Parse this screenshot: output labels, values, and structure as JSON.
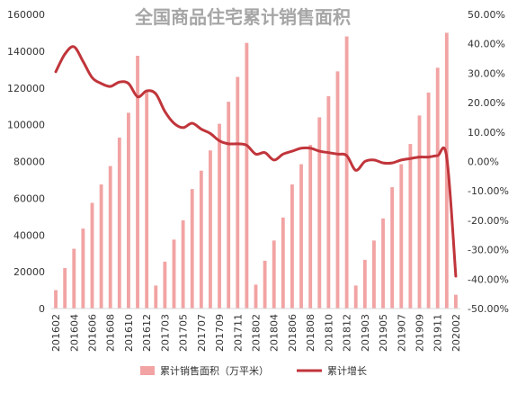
{
  "chart_data": {
    "type": "bar+line",
    "title": "全国商品住宅累计销售面积",
    "categories": [
      "201602",
      "201603",
      "201604",
      "201605",
      "201606",
      "201607",
      "201608",
      "201609",
      "201610",
      "201611",
      "201612",
      "201702",
      "201703",
      "201704",
      "201705",
      "201706",
      "201707",
      "201708",
      "201709",
      "201710",
      "201711",
      "201712",
      "201802",
      "201803",
      "201804",
      "201805",
      "201806",
      "201807",
      "201808",
      "201809",
      "201810",
      "201811",
      "201812",
      "201902",
      "201903",
      "201904",
      "201905",
      "201906",
      "201907",
      "201908",
      "201909",
      "201910",
      "201911",
      "201912",
      "202002"
    ],
    "x_tick_labels": [
      "201602",
      "201604",
      "201606",
      "201608",
      "201610",
      "201612",
      "201703",
      "201705",
      "201707",
      "201709",
      "201711",
      "201802",
      "201804",
      "201806",
      "201808",
      "201810",
      "201812",
      "201903",
      "201905",
      "201907",
      "201909",
      "201911",
      "202002"
    ],
    "series": [
      {
        "name": "累计销售面积（万平米）",
        "type": "bar",
        "axis": "left",
        "color": "#f2a3a3",
        "values": [
          10000,
          22000,
          32500,
          43500,
          57500,
          67500,
          77500,
          93000,
          106500,
          137500,
          118000,
          12500,
          25500,
          37500,
          48000,
          65000,
          75000,
          86000,
          100500,
          112500,
          126000,
          144500,
          13000,
          26000,
          37000,
          49500,
          67500,
          78500,
          89000,
          104000,
          115500,
          129000,
          148000,
          12500,
          26500,
          37000,
          49000,
          66000,
          78500,
          89500,
          105000,
          117500,
          131000,
          150000,
          7500
        ]
      },
      {
        "name": "累计增长",
        "type": "line",
        "axis": "right",
        "color": "#c0353b",
        "values": [
          30.5,
          36.5,
          39.0,
          34.0,
          28.5,
          26.5,
          25.5,
          27.0,
          26.5,
          22.0,
          24.0,
          23.0,
          17.0,
          13.0,
          11.5,
          13.0,
          11.0,
          9.5,
          7.0,
          6.0,
          6.0,
          5.5,
          2.5,
          3.0,
          0.5,
          2.5,
          3.5,
          4.5,
          4.5,
          3.5,
          3.0,
          2.5,
          2.0,
          -3.0,
          0.0,
          0.5,
          -0.5,
          -0.5,
          0.5,
          1.0,
          1.5,
          1.5,
          2.0,
          1.5,
          -39.0
        ]
      }
    ],
    "y_left": {
      "min": 0,
      "max": 160000,
      "step": 20000,
      "tick_labels": [
        "0",
        "20000",
        "40000",
        "60000",
        "80000",
        "100000",
        "120000",
        "140000",
        "160000"
      ]
    },
    "y_right": {
      "min": -50,
      "max": 50,
      "step": 10,
      "tick_labels": [
        "-50.00%",
        "-40.00%",
        "-30.00%",
        "-20.00%",
        "-10.00%",
        "0.00%",
        "10.00%",
        "20.00%",
        "30.00%",
        "40.00%",
        "50.00%"
      ]
    },
    "grid": false,
    "legend_position": "bottom"
  }
}
